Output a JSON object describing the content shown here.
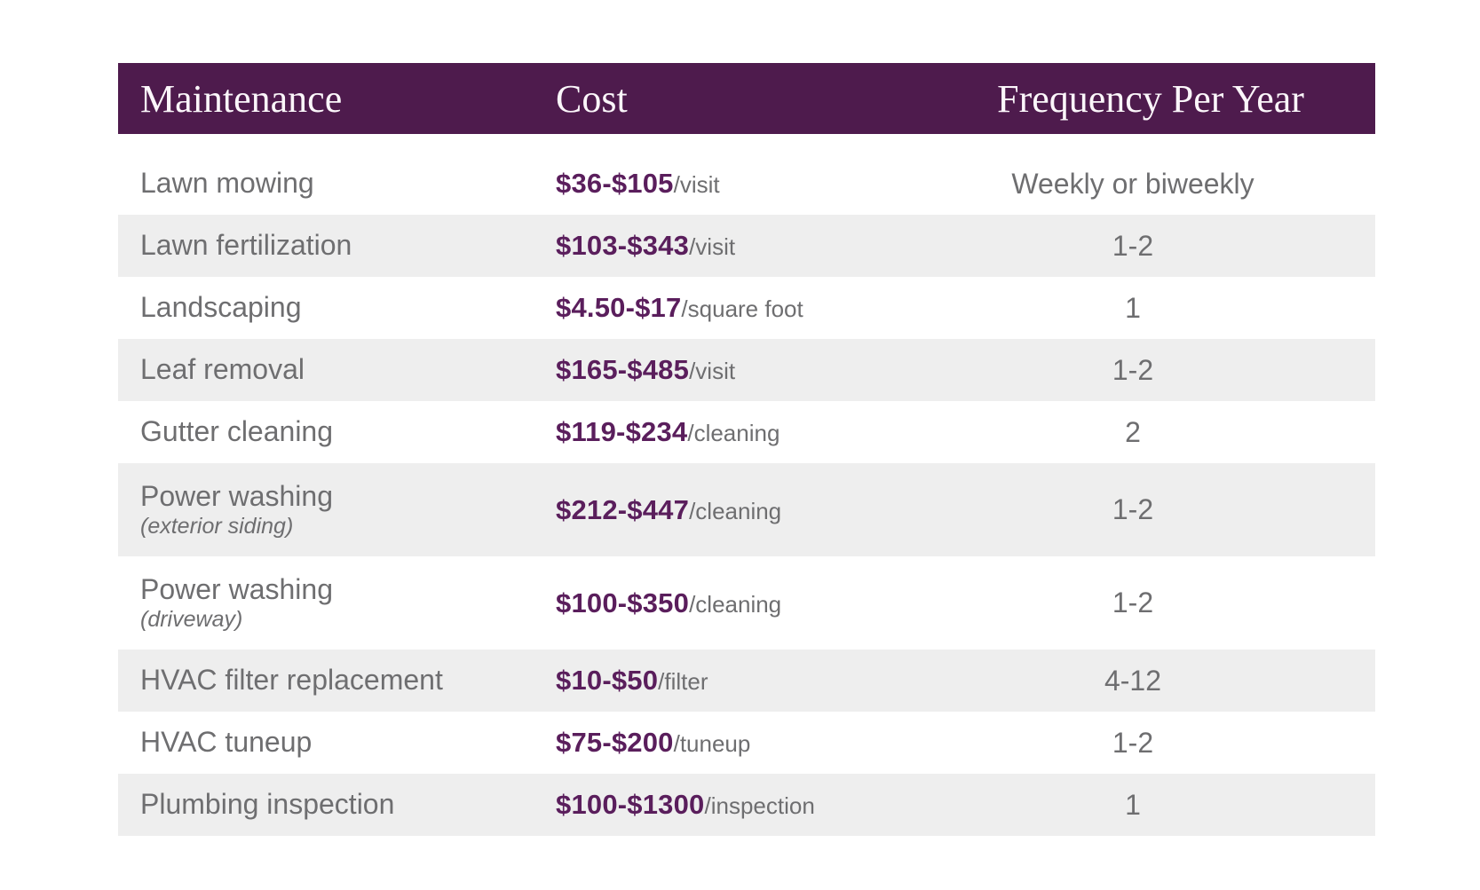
{
  "colors": {
    "header_background": "#4e1b4d",
    "header_text": "#fbf6fa",
    "body_text_gray": "#6e6e70",
    "price_purple": "#5a1e5c",
    "row_stripe": "#eeeeee",
    "page_background": "#ffffff"
  },
  "table": {
    "columns": [
      {
        "label": "Maintenance"
      },
      {
        "label": "Cost"
      },
      {
        "label": "Frequency Per Year"
      }
    ],
    "rows": [
      {
        "maintenance": "Lawn mowing",
        "sublabel": "",
        "cost_range": "$36-$105",
        "cost_unit": "/visit",
        "frequency": "Weekly or biweekly",
        "striped": false,
        "tall": false
      },
      {
        "maintenance": "Lawn fertilization",
        "sublabel": "",
        "cost_range": "$103-$343",
        "cost_unit": "/visit",
        "frequency": "1-2",
        "striped": true,
        "tall": false
      },
      {
        "maintenance": "Landscaping",
        "sublabel": "",
        "cost_range": "$4.50-$17",
        "cost_unit": "/square foot",
        "frequency": "1",
        "striped": false,
        "tall": false
      },
      {
        "maintenance": "Leaf removal",
        "sublabel": "",
        "cost_range": "$165-$485",
        "cost_unit": "/visit",
        "frequency": "1-2",
        "striped": true,
        "tall": false
      },
      {
        "maintenance": "Gutter cleaning",
        "sublabel": "",
        "cost_range": "$119-$234",
        "cost_unit": "/cleaning",
        "frequency": "2",
        "striped": false,
        "tall": false
      },
      {
        "maintenance": "Power washing",
        "sublabel": "(exterior siding)",
        "cost_range": "$212-$447",
        "cost_unit": "/cleaning",
        "frequency": "1-2",
        "striped": true,
        "tall": true
      },
      {
        "maintenance": "Power washing",
        "sublabel": "(driveway)",
        "cost_range": "$100-$350",
        "cost_unit": "/cleaning",
        "frequency": "1-2",
        "striped": false,
        "tall": true
      },
      {
        "maintenance": "HVAC filter replacement",
        "sublabel": "",
        "cost_range": "$10-$50",
        "cost_unit": "/filter",
        "frequency": "4-12",
        "striped": true,
        "tall": false
      },
      {
        "maintenance": "HVAC tuneup",
        "sublabel": "",
        "cost_range": "$75-$200",
        "cost_unit": "/tuneup",
        "frequency": "1-2",
        "striped": false,
        "tall": false
      },
      {
        "maintenance": "Plumbing inspection",
        "sublabel": "",
        "cost_range": "$100-$1300",
        "cost_unit": "/inspection",
        "frequency": "1",
        "striped": true,
        "tall": false
      }
    ]
  }
}
